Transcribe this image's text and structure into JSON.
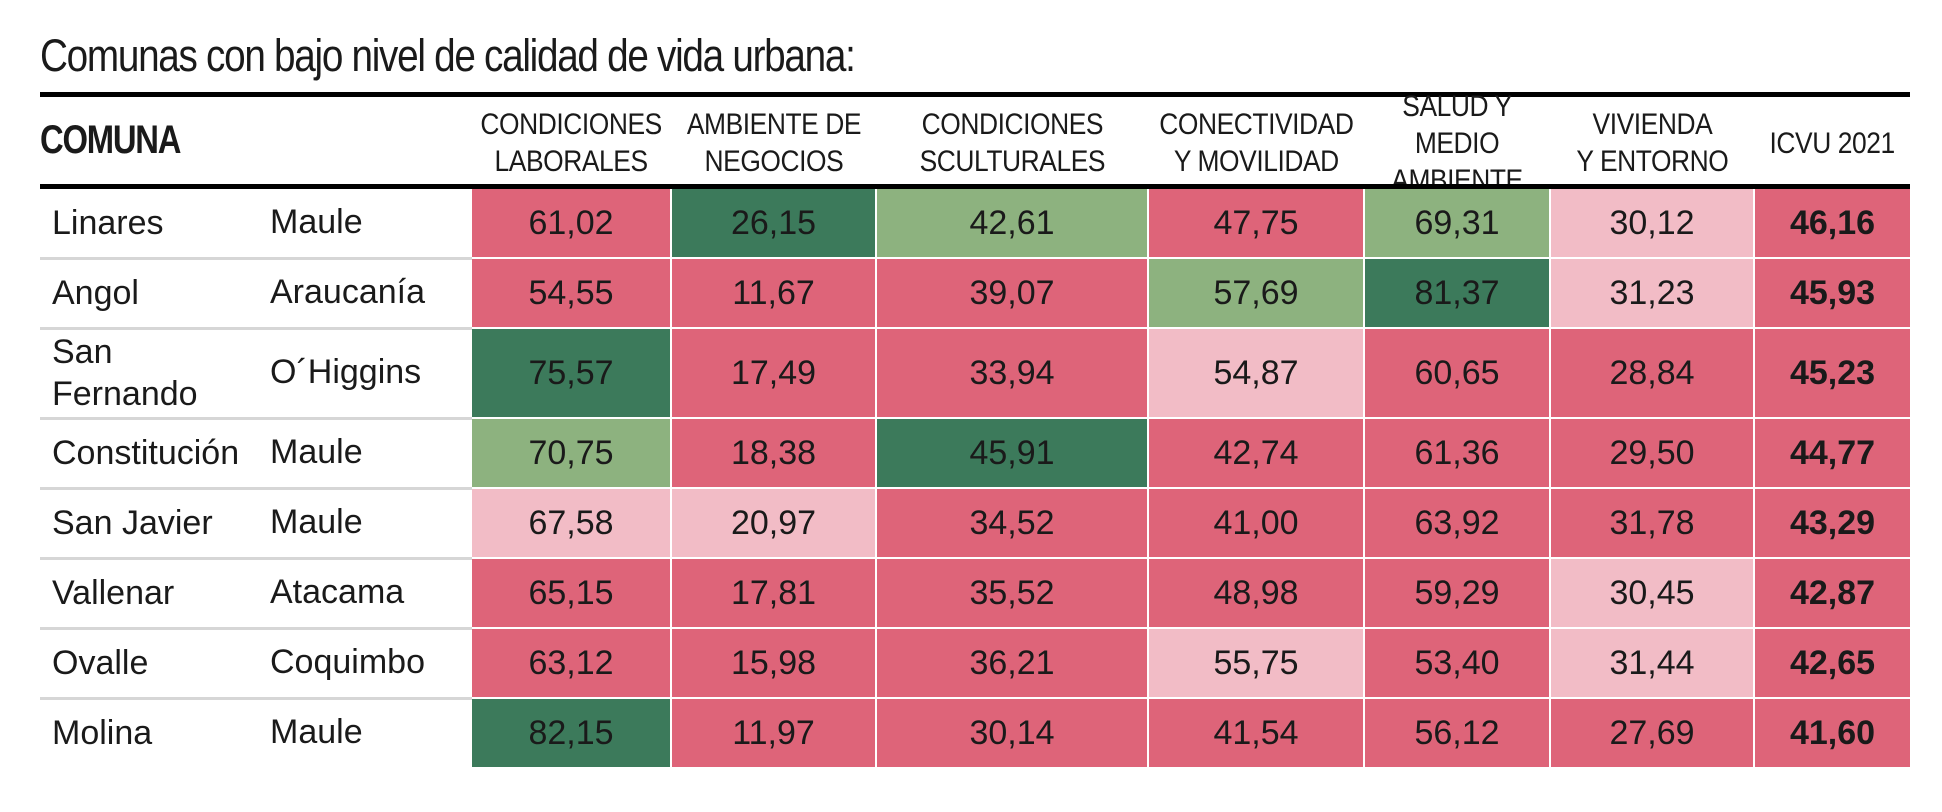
{
  "title": "Comunas con bajo nivel de calidad de vida urbana:",
  "colors": {
    "red": "#de6479",
    "light_pink": "#f2bcc6",
    "light_green": "#8db27f",
    "dark_green": "#3c7a5b",
    "header_rule": "#000000"
  },
  "headers": {
    "comuna": "COMUNA",
    "columns": [
      "CONDICIONES\nLABORALES",
      "AMBIENTE DE\nNEGOCIOS",
      "CONDICIONES\nSCULTURALES",
      "CONECTIVIDAD\nY MOVILIDAD",
      "SALUD Y\nMEDIO AMBIENTE",
      "VIVIENDA\nY ENTORNO",
      "ICVU 2021"
    ]
  },
  "chart_data": {
    "type": "table",
    "columns": [
      "COMUNA",
      "",
      "CONDICIONES LABORALES",
      "AMBIENTE DE NEGOCIOS",
      "CONDICIONES SCULTURALES",
      "CONECTIVIDAD Y MOVILIDAD",
      "SALUD Y MEDIO AMBIENTE",
      "VIVIENDA Y ENTORNO",
      "ICVU 2021"
    ],
    "rows": [
      {
        "comuna": "Linares",
        "region": "Maule",
        "values": [
          "61,02",
          "26,15",
          "42,61",
          "47,75",
          "69,31",
          "30,12",
          "46,16"
        ],
        "shades": [
          "red",
          "dark_green",
          "light_green",
          "red",
          "light_green",
          "light_pink",
          "red"
        ]
      },
      {
        "comuna": "Angol",
        "region": "Araucanía",
        "values": [
          "54,55",
          "11,67",
          "39,07",
          "57,69",
          "81,37",
          "31,23",
          "45,93"
        ],
        "shades": [
          "red",
          "red",
          "red",
          "light_green",
          "dark_green",
          "light_pink",
          "red"
        ]
      },
      {
        "comuna": "San\nFernando",
        "region": "O´Higgins",
        "values": [
          "75,57",
          "17,49",
          "33,94",
          "54,87",
          "60,65",
          "28,84",
          "45,23"
        ],
        "shades": [
          "dark_green",
          "red",
          "red",
          "light_pink",
          "red",
          "red",
          "red"
        ]
      },
      {
        "comuna": "Constitución",
        "region": "Maule",
        "values": [
          "70,75",
          "18,38",
          "45,91",
          "42,74",
          "61,36",
          "29,50",
          "44,77"
        ],
        "shades": [
          "light_green",
          "red",
          "dark_green",
          "red",
          "red",
          "red",
          "red"
        ]
      },
      {
        "comuna": "San Javier",
        "region": "Maule",
        "values": [
          "67,58",
          "20,97",
          "34,52",
          "41,00",
          "63,92",
          "31,78",
          "43,29"
        ],
        "shades": [
          "light_pink",
          "light_pink",
          "red",
          "red",
          "red",
          "red",
          "red"
        ]
      },
      {
        "comuna": "Vallenar",
        "region": "Atacama",
        "values": [
          "65,15",
          "17,81",
          "35,52",
          "48,98",
          "59,29",
          "30,45",
          "42,87"
        ],
        "shades": [
          "red",
          "red",
          "red",
          "red",
          "red",
          "light_pink",
          "red"
        ]
      },
      {
        "comuna": "Ovalle",
        "region": "Coquimbo",
        "values": [
          "63,12",
          "15,98",
          "36,21",
          "55,75",
          "53,40",
          "31,44",
          "42,65"
        ],
        "shades": [
          "red",
          "red",
          "red",
          "light_pink",
          "red",
          "light_pink",
          "red"
        ]
      },
      {
        "comuna": "Molina",
        "region": "Maule",
        "values": [
          "82,15",
          "11,97",
          "30,14",
          "41,54",
          "56,12",
          "27,69",
          "41,60"
        ],
        "shades": [
          "dark_green",
          "red",
          "red",
          "red",
          "red",
          "red",
          "red"
        ]
      }
    ]
  }
}
